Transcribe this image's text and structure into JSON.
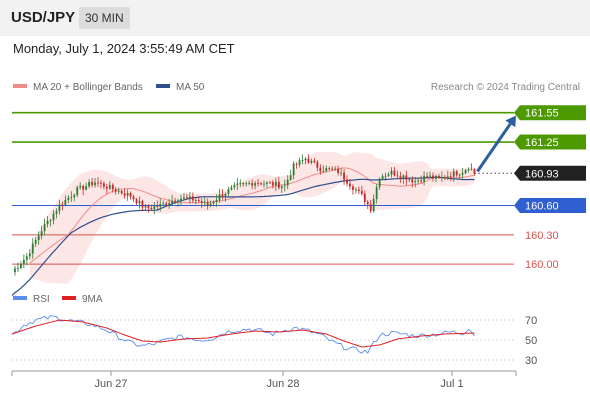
{
  "header": {
    "symbol": "USD/JPY",
    "timeframe": "30 MIN"
  },
  "datetime": "Monday, July 1, 2024 3:55:49 AM CET",
  "credit": "Research © 2024 Trading Central",
  "legend": {
    "bollinger": "MA 20 + Bollinger Bands",
    "ma50": "MA 50"
  },
  "rsi_legend": {
    "rsi": "RSI",
    "ma": "9MA"
  },
  "colors": {
    "bull": "#2e7d32",
    "bear": "#c62828",
    "ma20": "#f28a8a",
    "band": "#fde2e2",
    "ma50": "#2f4f8f",
    "resistance": "#4c9a00",
    "support": "#2f5fd0",
    "low_support": "#d9534f",
    "arrow": "#2d5f9e",
    "current": "#222222",
    "rsi": "#5b8def",
    "rsi_ma": "#e02020"
  },
  "chart_data": [
    {
      "type": "candlestick",
      "ylim": [
        159.92,
        161.68
      ],
      "x_ticks": [
        {
          "label": "Jun 27",
          "pos": 0.18
        },
        {
          "label": "Jun 28",
          "pos": 0.55
        },
        {
          "label": "Jul 1",
          "pos": 0.94
        }
      ],
      "levels": [
        {
          "value": 161.55,
          "label": "161.55",
          "kind": "resistance",
          "badge": true
        },
        {
          "value": 161.25,
          "label": "161.25",
          "kind": "resistance",
          "badge": true
        },
        {
          "value": 160.93,
          "label": "160.93",
          "kind": "current",
          "badge": true
        },
        {
          "value": 160.6,
          "label": "160.60",
          "kind": "support",
          "badge": true
        },
        {
          "value": 160.3,
          "label": "160.30",
          "kind": "low_support",
          "badge": false
        },
        {
          "value": 160.0,
          "label": "160.00",
          "kind": "low_support",
          "badge": false
        }
      ],
      "path": [
        [
          0,
          159.92
        ],
        [
          5,
          160.08
        ],
        [
          10,
          160.35
        ],
        [
          16,
          160.6
        ],
        [
          22,
          160.76
        ],
        [
          28,
          160.84
        ],
        [
          34,
          160.77
        ],
        [
          40,
          160.7
        ],
        [
          45,
          160.57
        ],
        [
          50,
          160.6
        ],
        [
          56,
          160.68
        ],
        [
          62,
          160.66
        ],
        [
          66,
          160.6
        ],
        [
          70,
          160.7
        ],
        [
          76,
          160.8
        ],
        [
          82,
          160.84
        ],
        [
          88,
          160.82
        ],
        [
          92,
          160.8
        ],
        [
          95,
          161.0
        ],
        [
          99,
          161.08
        ],
        [
          104,
          160.98
        ],
        [
          110,
          160.95
        ],
        [
          114,
          160.82
        ],
        [
          118,
          160.7
        ],
        [
          121,
          160.57
        ],
        [
          124,
          160.9
        ],
        [
          128,
          160.94
        ],
        [
          132,
          160.9
        ],
        [
          136,
          160.85
        ],
        [
          140,
          160.9
        ],
        [
          144,
          160.87
        ],
        [
          148,
          160.92
        ],
        [
          152,
          160.95
        ],
        [
          154,
          161.0
        ],
        [
          156,
          160.93
        ]
      ],
      "arrow": {
        "from": [
          157,
          160.95
        ],
        "to": [
          170,
          161.52
        ]
      }
    },
    {
      "type": "line",
      "ylim": [
        20,
        80
      ],
      "y_ticks": [
        30,
        50,
        70
      ],
      "rsi": [
        [
          0,
          55
        ],
        [
          4,
          65
        ],
        [
          8,
          70
        ],
        [
          14,
          73
        ],
        [
          20,
          69
        ],
        [
          26,
          66
        ],
        [
          32,
          60
        ],
        [
          36,
          53
        ],
        [
          40,
          47
        ],
        [
          44,
          44
        ],
        [
          48,
          46
        ],
        [
          52,
          50
        ],
        [
          56,
          53
        ],
        [
          60,
          52
        ],
        [
          64,
          50
        ],
        [
          68,
          52
        ],
        [
          72,
          58
        ],
        [
          76,
          60
        ],
        [
          80,
          61
        ],
        [
          84,
          59
        ],
        [
          88,
          56
        ],
        [
          92,
          60
        ],
        [
          96,
          62
        ],
        [
          100,
          59
        ],
        [
          104,
          55
        ],
        [
          108,
          48
        ],
        [
          112,
          43
        ],
        [
          116,
          40
        ],
        [
          120,
          38
        ],
        [
          124,
          55
        ],
        [
          128,
          57
        ],
        [
          132,
          56
        ],
        [
          136,
          54
        ],
        [
          140,
          55
        ],
        [
          144,
          56
        ],
        [
          148,
          58
        ],
        [
          152,
          57
        ],
        [
          154,
          62
        ],
        [
          156,
          55
        ]
      ],
      "rsi_ma": [
        [
          0,
          56
        ],
        [
          8,
          64
        ],
        [
          16,
          70
        ],
        [
          24,
          68
        ],
        [
          32,
          62
        ],
        [
          38,
          55
        ],
        [
          44,
          49
        ],
        [
          50,
          48
        ],
        [
          58,
          51
        ],
        [
          66,
          52
        ],
        [
          74,
          56
        ],
        [
          82,
          59
        ],
        [
          90,
          58
        ],
        [
          98,
          60
        ],
        [
          106,
          56
        ],
        [
          112,
          49
        ],
        [
          118,
          43
        ],
        [
          124,
          45
        ],
        [
          130,
          51
        ],
        [
          138,
          54
        ],
        [
          146,
          56
        ],
        [
          156,
          57
        ]
      ]
    }
  ]
}
